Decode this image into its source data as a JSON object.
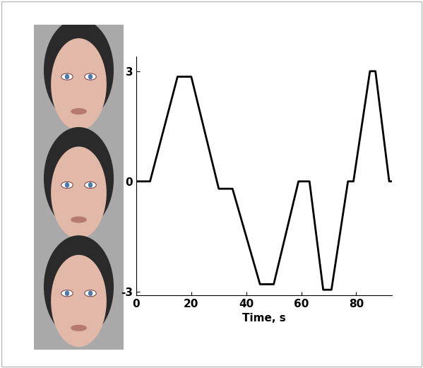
{
  "chart_data": {
    "type": "line",
    "x": [
      0,
      5,
      15,
      20,
      30,
      35,
      45,
      50,
      59,
      63,
      68,
      71,
      77,
      79,
      85,
      87,
      92,
      93
    ],
    "values": [
      0,
      0,
      2.85,
      2.85,
      -0.2,
      -0.2,
      -2.8,
      -2.8,
      0,
      0,
      -2.95,
      -2.95,
      0,
      0,
      3,
      3,
      0,
      0
    ],
    "color": "#000000",
    "x_label": "Time, s",
    "xlim": [
      0,
      93
    ],
    "xticks": [
      0,
      20,
      40,
      60,
      80
    ],
    "ylim": [
      -3.1,
      3.4
    ],
    "yticks": [
      -3,
      0,
      3
    ],
    "grid": false
  }
}
